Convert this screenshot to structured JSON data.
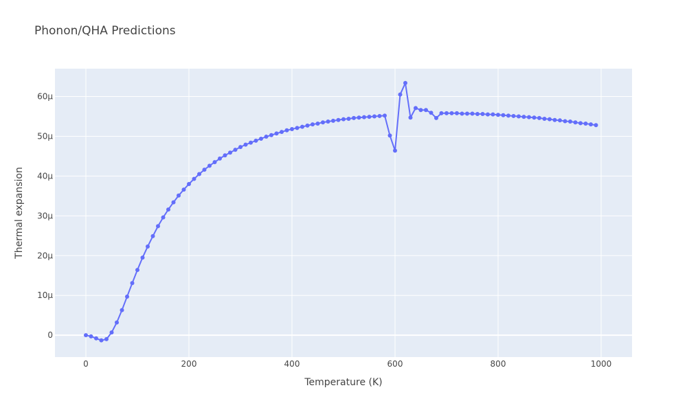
{
  "chart_data": {
    "type": "line",
    "title": "Phonon/QHA Predictions",
    "xlabel": "Temperature (K)",
    "ylabel": "Thermal expansion",
    "xlim": [
      -60,
      1060
    ],
    "ylim": [
      -5.5e-06,
      6.7e-05
    ],
    "x_ticks": [
      {
        "value": 0,
        "label": "0"
      },
      {
        "value": 200,
        "label": "200"
      },
      {
        "value": 400,
        "label": "400"
      },
      {
        "value": 600,
        "label": "600"
      },
      {
        "value": 800,
        "label": "800"
      },
      {
        "value": 1000,
        "label": "1000"
      }
    ],
    "y_ticks": [
      {
        "value": 0,
        "label": "0"
      },
      {
        "value": 1e-05,
        "label": "10μ"
      },
      {
        "value": 2e-05,
        "label": "20μ"
      },
      {
        "value": 3e-05,
        "label": "30μ"
      },
      {
        "value": 4e-05,
        "label": "40μ"
      },
      {
        "value": 5e-05,
        "label": "50μ"
      },
      {
        "value": 6e-05,
        "label": "60μ"
      }
    ],
    "grid": true,
    "legend": "none",
    "colors": {
      "series": "#636efa",
      "plot_bg": "#e5ecf6",
      "grid": "#ffffff"
    },
    "series": [
      {
        "x": [
          0,
          10,
          20,
          30,
          40,
          50,
          60,
          70,
          80,
          90,
          100,
          110,
          120,
          130,
          140,
          150,
          160,
          170,
          180,
          190,
          200,
          210,
          220,
          230,
          240,
          250,
          260,
          270,
          280,
          290,
          300,
          310,
          320,
          330,
          340,
          350,
          360,
          370,
          380,
          390,
          400,
          410,
          420,
          430,
          440,
          450,
          460,
          470,
          480,
          490,
          500,
          510,
          520,
          530,
          540,
          550,
          560,
          570,
          580,
          590,
          600,
          610,
          620,
          630,
          640,
          650,
          660,
          670,
          680,
          690,
          700,
          710,
          720,
          730,
          740,
          750,
          760,
          770,
          780,
          790,
          800,
          810,
          820,
          830,
          840,
          850,
          860,
          870,
          880,
          890,
          900,
          910,
          920,
          930,
          940,
          950,
          960,
          970,
          980,
          990
        ],
        "y": [
          0.0,
          -3e-07,
          -8e-07,
          -1.3e-06,
          -1e-06,
          7e-07,
          3.2e-06,
          6.3e-06,
          9.7e-06,
          1.31e-05,
          1.64e-05,
          1.95e-05,
          2.23e-05,
          2.49e-05,
          2.74e-05,
          2.96e-05,
          3.16e-05,
          3.34e-05,
          3.51e-05,
          3.66e-05,
          3.8e-05,
          3.93e-05,
          4.05e-05,
          4.16e-05,
          4.26e-05,
          4.35e-05,
          4.44e-05,
          4.52e-05,
          4.59e-05,
          4.66e-05,
          4.73e-05,
          4.79e-05,
          4.84e-05,
          4.89e-05,
          4.94e-05,
          4.99e-05,
          5.03e-05,
          5.07e-05,
          5.11e-05,
          5.15e-05,
          5.18e-05,
          5.21e-05,
          5.24e-05,
          5.27e-05,
          5.3e-05,
          5.32e-05,
          5.35e-05,
          5.37e-05,
          5.39e-05,
          5.41e-05,
          5.43e-05,
          5.44e-05,
          5.46e-05,
          5.47e-05,
          5.48e-05,
          5.49e-05,
          5.5e-05,
          5.51e-05,
          5.52e-05,
          5.02e-05,
          4.64e-05,
          6.05e-05,
          6.34e-05,
          5.47e-05,
          5.71e-05,
          5.66e-05,
          5.66e-05,
          5.59e-05,
          5.46e-05,
          5.58e-05,
          5.58e-05,
          5.58e-05,
          5.58e-05,
          5.57e-05,
          5.57e-05,
          5.57e-05,
          5.56e-05,
          5.56e-05,
          5.55e-05,
          5.55e-05,
          5.54e-05,
          5.53e-05,
          5.52e-05,
          5.51e-05,
          5.5e-05,
          5.49e-05,
          5.48e-05,
          5.47e-05,
          5.46e-05,
          5.44e-05,
          5.43e-05,
          5.41e-05,
          5.4e-05,
          5.38e-05,
          5.37e-05,
          5.35e-05,
          5.33e-05,
          5.32e-05,
          5.3e-05,
          5.28e-05
        ]
      }
    ]
  }
}
